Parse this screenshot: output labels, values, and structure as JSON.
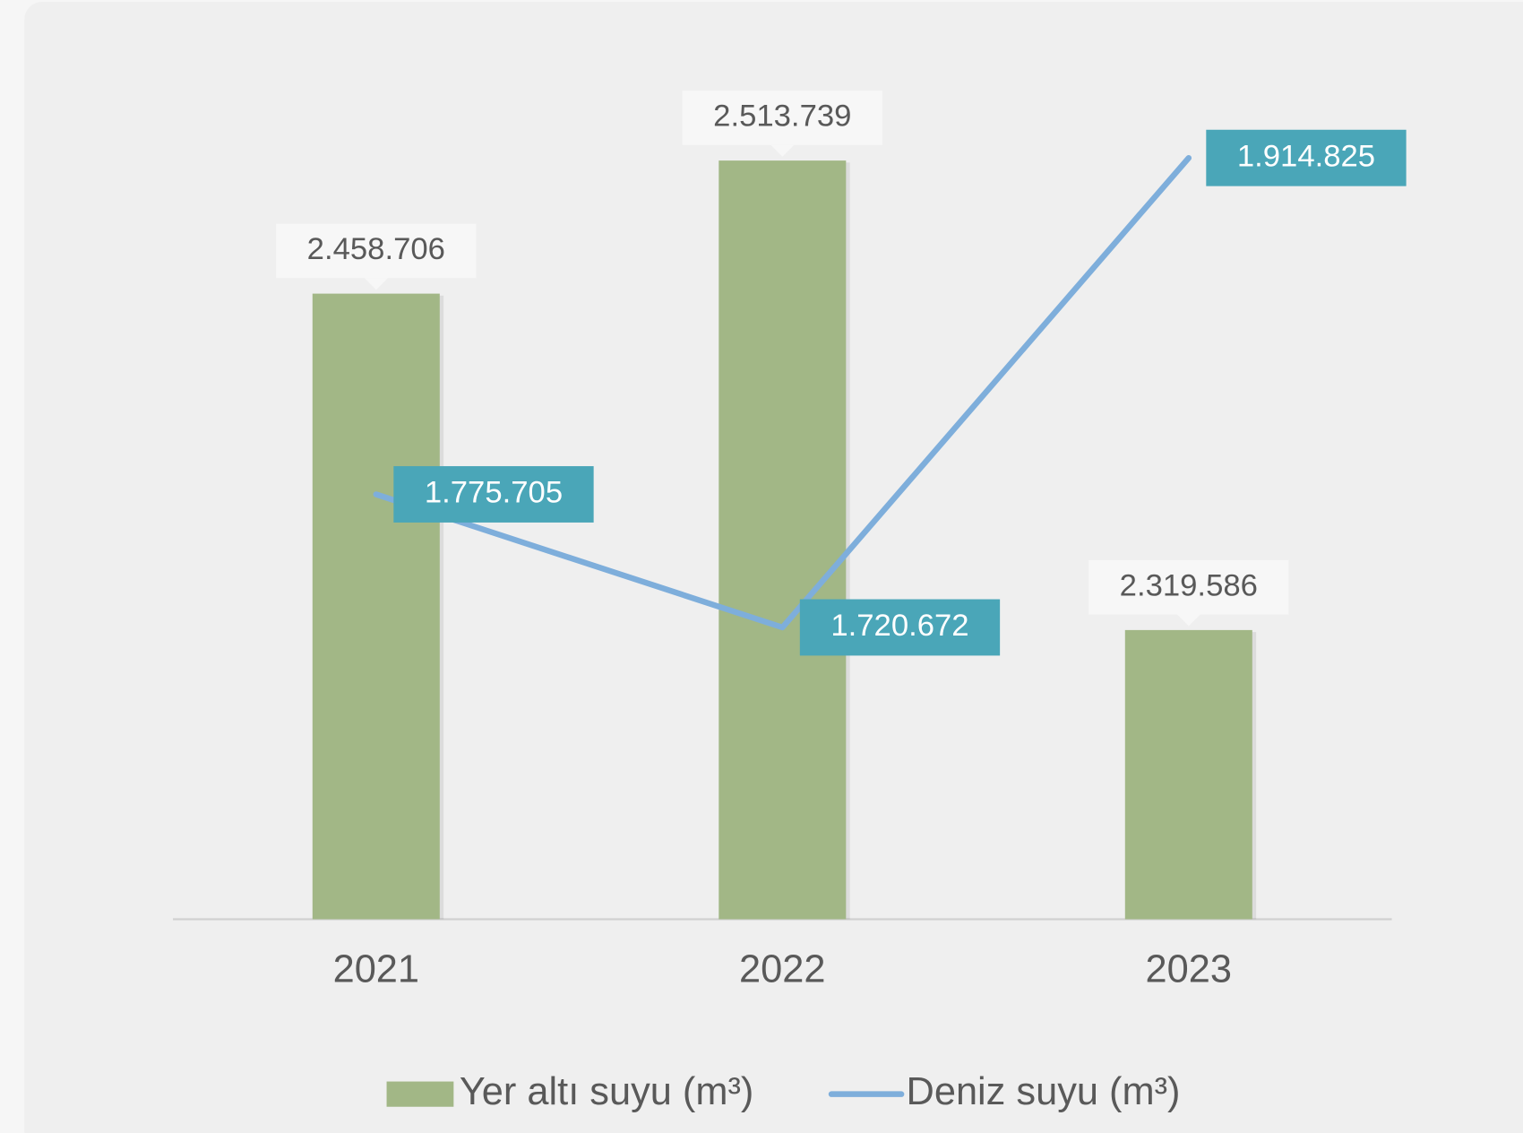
{
  "chart_data": {
    "type": "bar_line",
    "categories": [
      "2021",
      "2022",
      "2023"
    ],
    "series": [
      {
        "name": "Yer altı suyu (m³)",
        "type": "bar",
        "color": "#a2b786",
        "values": [
          2458706,
          2513739,
          2319586
        ],
        "value_labels": [
          "2.458.706",
          "2.513.739",
          "2.319.586"
        ]
      },
      {
        "name": "Deniz suyu (m³)",
        "type": "line",
        "axis": "y2",
        "color": "#7eaedb",
        "values": [
          1775705,
          1720672,
          1914825
        ],
        "value_labels": [
          "1.775.705",
          "1.720.672",
          "1.914.825"
        ]
      }
    ],
    "ylim": [
      2200000,
      2550000
    ],
    "y2lim": [
      1600000,
      1950000
    ],
    "legend": "bottom"
  }
}
